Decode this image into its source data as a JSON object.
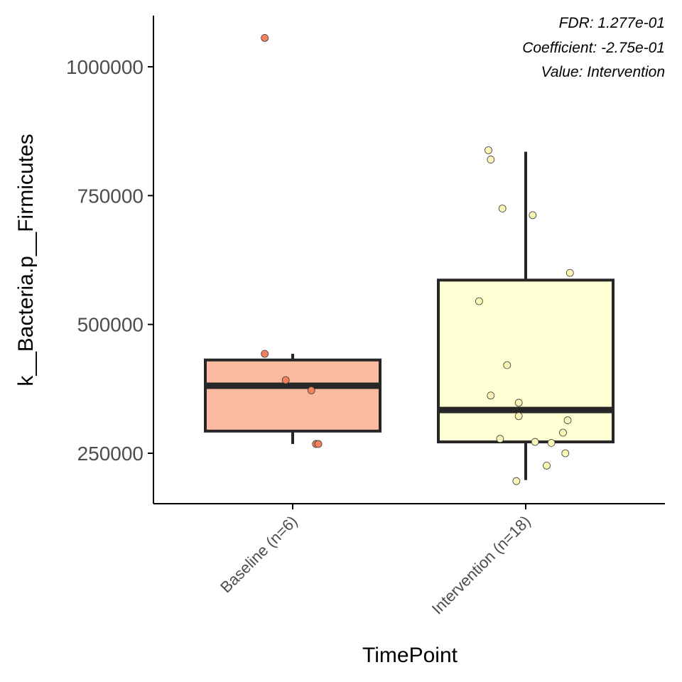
{
  "chart_data": {
    "type": "box",
    "xlabel": "TimePoint",
    "ylabel": "k__Bacteria.p__Firmicutes",
    "ylim": [
      150000,
      1095000
    ],
    "yticks": [
      250000,
      500000,
      750000,
      1000000
    ],
    "ytick_labels": [
      "250000",
      "500000",
      "750000",
      "1000000"
    ],
    "annotations": [
      "FDR: 1.277e-01",
      "Coefficient: -2.75e-01",
      "Value: Intervention"
    ],
    "legend": "none",
    "grid": false,
    "groups": [
      {
        "label": "Baseline (n=6)",
        "fill": "#fcbba1",
        "point_color": "#f4805f",
        "whisker_low": 268000,
        "q1": 293000,
        "median": 381000,
        "q3": 431000,
        "whisker_high": 443000,
        "points": [
          {
            "x": -0.12,
            "y": 1056000
          },
          {
            "x": -0.12,
            "y": 443000
          },
          {
            "x": -0.03,
            "y": 392000
          },
          {
            "x": 0.08,
            "y": 372000
          },
          {
            "x": 0.1,
            "y": 268000
          },
          {
            "x": 0.11,
            "y": 268000
          }
        ]
      },
      {
        "label": "Intervention (n=18)",
        "fill": "#ffffd4",
        "point_color": "#fbf5b7",
        "whisker_low": 198000,
        "q1": 272000,
        "median": 334000,
        "q3": 586000,
        "whisker_high": 835000,
        "points": [
          {
            "x": -0.16,
            "y": 838000
          },
          {
            "x": -0.15,
            "y": 820000
          },
          {
            "x": -0.1,
            "y": 725000
          },
          {
            "x": 0.03,
            "y": 712000
          },
          {
            "x": 0.19,
            "y": 600000
          },
          {
            "x": -0.2,
            "y": 545000
          },
          {
            "x": -0.08,
            "y": 421000
          },
          {
            "x": -0.15,
            "y": 362000
          },
          {
            "x": -0.03,
            "y": 348000
          },
          {
            "x": -0.03,
            "y": 322000
          },
          {
            "x": 0.18,
            "y": 314000
          },
          {
            "x": 0.16,
            "y": 290000
          },
          {
            "x": -0.11,
            "y": 278000
          },
          {
            "x": 0.04,
            "y": 272000
          },
          {
            "x": 0.11,
            "y": 270000
          },
          {
            "x": 0.17,
            "y": 250000
          },
          {
            "x": 0.09,
            "y": 226000
          },
          {
            "x": -0.04,
            "y": 196000
          }
        ]
      }
    ]
  }
}
